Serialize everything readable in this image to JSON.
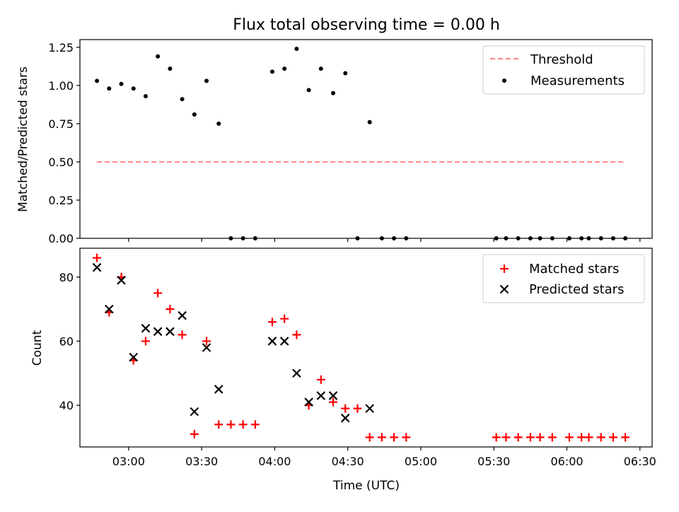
{
  "chart_data": [
    {
      "type": "scatter",
      "title": "Flux total observing time = 0.00 h",
      "xlabel": "",
      "ylabel": "Matched/Predicted stars",
      "ylim": [
        0,
        1.3
      ],
      "yticks": [
        "0.00",
        "0.25",
        "0.50",
        "0.75",
        "1.00",
        "1.25"
      ],
      "legend": {
        "placement": "top-right",
        "entries": [
          "Threshold",
          "Measurements"
        ]
      },
      "series": [
        {
          "name": "Threshold",
          "kind": "dashed-line",
          "color": "#ff7f7f",
          "x": [
            "02:47",
            "06:24"
          ],
          "y": [
            0.5,
            0.5
          ]
        },
        {
          "name": "Measurements",
          "kind": "dots",
          "color": "#000000",
          "points": [
            [
              "02:47",
              1.03
            ],
            [
              "02:52",
              0.98
            ],
            [
              "02:57",
              1.01
            ],
            [
              "03:02",
              0.98
            ],
            [
              "03:07",
              0.93
            ],
            [
              "03:12",
              1.19
            ],
            [
              "03:17",
              1.11
            ],
            [
              "03:22",
              0.91
            ],
            [
              "03:27",
              0.81
            ],
            [
              "03:32",
              1.03
            ],
            [
              "03:37",
              0.75
            ],
            [
              "03:42",
              0.0
            ],
            [
              "03:47",
              0.0
            ],
            [
              "03:52",
              0.0
            ],
            [
              "03:59",
              1.09
            ],
            [
              "04:04",
              1.11
            ],
            [
              "04:09",
              1.24
            ],
            [
              "04:14",
              0.97
            ],
            [
              "04:19",
              1.11
            ],
            [
              "04:24",
              0.95
            ],
            [
              "04:29",
              1.08
            ],
            [
              "04:34",
              0.0
            ],
            [
              "04:39",
              0.76
            ],
            [
              "04:44",
              0.0
            ],
            [
              "04:49",
              0.0
            ],
            [
              "04:54",
              0.0
            ],
            [
              "05:31",
              0.0
            ],
            [
              "05:35",
              0.0
            ],
            [
              "05:40",
              0.0
            ],
            [
              "05:45",
              0.0
            ],
            [
              "05:49",
              0.0
            ],
            [
              "05:54",
              0.0
            ],
            [
              "06:01",
              0.0
            ],
            [
              "06:06",
              0.0
            ],
            [
              "06:09",
              0.0
            ],
            [
              "06:14",
              0.0
            ],
            [
              "06:19",
              0.0
            ],
            [
              "06:24",
              0.0
            ]
          ]
        }
      ]
    },
    {
      "type": "scatter",
      "title": "",
      "xlabel": "Time (UTC)",
      "ylabel": "Count",
      "ylim": [
        27,
        89
      ],
      "yticks": [
        "40",
        "60",
        "80"
      ],
      "xlim": [
        "02:40",
        "06:35"
      ],
      "xticks": [
        "03:00",
        "03:30",
        "04:00",
        "04:30",
        "05:00",
        "05:30",
        "06:00",
        "06:30"
      ],
      "legend": {
        "placement": "top-right",
        "entries": [
          "Matched stars",
          "Predicted stars"
        ]
      },
      "series": [
        {
          "name": "Matched stars",
          "marker": "plus",
          "color": "#ff0000",
          "points": [
            [
              "02:47",
              86
            ],
            [
              "02:52",
              69
            ],
            [
              "02:57",
              80
            ],
            [
              "03:02",
              54
            ],
            [
              "03:07",
              60
            ],
            [
              "03:12",
              75
            ],
            [
              "03:17",
              70
            ],
            [
              "03:22",
              62
            ],
            [
              "03:27",
              31
            ],
            [
              "03:32",
              60
            ],
            [
              "03:37",
              34
            ],
            [
              "03:42",
              34
            ],
            [
              "03:47",
              34
            ],
            [
              "03:52",
              34
            ],
            [
              "03:59",
              66
            ],
            [
              "04:04",
              67
            ],
            [
              "04:09",
              62
            ],
            [
              "04:14",
              40
            ],
            [
              "04:19",
              48
            ],
            [
              "04:24",
              41
            ],
            [
              "04:29",
              39
            ],
            [
              "04:34",
              39
            ],
            [
              "04:39",
              30
            ],
            [
              "04:44",
              30
            ],
            [
              "04:49",
              30
            ],
            [
              "04:54",
              30
            ],
            [
              "05:31",
              30
            ],
            [
              "05:35",
              30
            ],
            [
              "05:40",
              30
            ],
            [
              "05:45",
              30
            ],
            [
              "05:49",
              30
            ],
            [
              "05:54",
              30
            ],
            [
              "06:01",
              30
            ],
            [
              "06:06",
              30
            ],
            [
              "06:09",
              30
            ],
            [
              "06:14",
              30
            ],
            [
              "06:19",
              30
            ],
            [
              "06:24",
              30
            ]
          ]
        },
        {
          "name": "Predicted stars",
          "marker": "x",
          "color": "#000000",
          "points": [
            [
              "02:47",
              83
            ],
            [
              "02:52",
              70
            ],
            [
              "02:57",
              79
            ],
            [
              "03:02",
              55
            ],
            [
              "03:07",
              64
            ],
            [
              "03:12",
              63
            ],
            [
              "03:17",
              63
            ],
            [
              "03:22",
              68
            ],
            [
              "03:27",
              38
            ],
            [
              "03:32",
              58
            ],
            [
              "03:37",
              45
            ],
            [
              "03:59",
              60
            ],
            [
              "04:04",
              60
            ],
            [
              "04:09",
              50
            ],
            [
              "04:14",
              41
            ],
            [
              "04:19",
              43
            ],
            [
              "04:24",
              43
            ],
            [
              "04:29",
              36
            ],
            [
              "04:39",
              39
            ]
          ]
        }
      ]
    }
  ]
}
